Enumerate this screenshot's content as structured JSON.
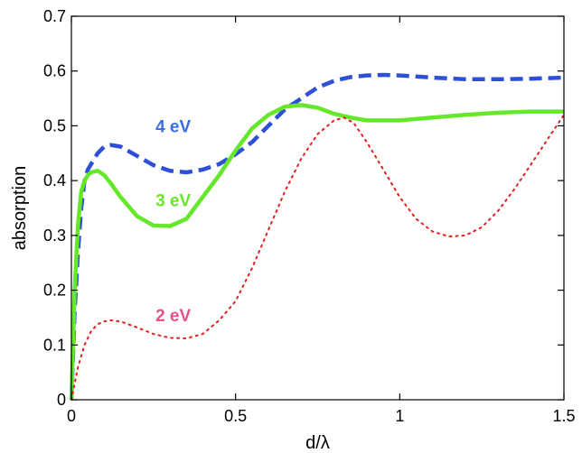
{
  "chart_data": {
    "type": "line",
    "title": "",
    "xlabel": "d/λ",
    "ylabel": "absorption",
    "xlim": [
      0,
      1.5
    ],
    "ylim": [
      0,
      0.7
    ],
    "grid": false,
    "legend": "none",
    "x_ticks": [
      0,
      0.5,
      1,
      1.5
    ],
    "x_tick_labels": [
      "0",
      "0.5",
      "1",
      "1.5"
    ],
    "y_ticks": [
      0,
      0.1,
      0.2,
      0.3,
      0.4,
      0.5,
      0.6,
      0.7
    ],
    "y_tick_labels": [
      "0",
      "0.1",
      "0.2",
      "0.3",
      "0.4",
      "0.5",
      "0.6",
      "0.7"
    ],
    "series": [
      {
        "name": "4 eV",
        "color": "#2e4fd6",
        "style": "dashed",
        "label_color": "#3a6fe0",
        "label_at": [
          0.31,
          0.5
        ],
        "x": [
          0,
          0.01,
          0.02,
          0.03,
          0.04,
          0.05,
          0.06,
          0.08,
          0.1,
          0.12,
          0.15,
          0.2,
          0.25,
          0.3,
          0.35,
          0.4,
          0.45,
          0.5,
          0.55,
          0.6,
          0.65,
          0.7,
          0.75,
          0.8,
          0.85,
          0.9,
          0.95,
          1.0,
          1.05,
          1.1,
          1.2,
          1.3,
          1.4,
          1.5
        ],
        "values": [
          0.0,
          0.16,
          0.27,
          0.35,
          0.4,
          0.42,
          0.43,
          0.45,
          0.462,
          0.465,
          0.462,
          0.445,
          0.428,
          0.418,
          0.415,
          0.42,
          0.43,
          0.448,
          0.47,
          0.5,
          0.53,
          0.55,
          0.57,
          0.582,
          0.589,
          0.592,
          0.593,
          0.592,
          0.59,
          0.588,
          0.585,
          0.585,
          0.586,
          0.588
        ]
      },
      {
        "name": "3 eV",
        "color": "#66e82a",
        "style": "solid",
        "label_color": "#66e82a",
        "label_at": [
          0.31,
          0.365
        ],
        "x": [
          0,
          0.01,
          0.02,
          0.03,
          0.04,
          0.05,
          0.06,
          0.08,
          0.1,
          0.12,
          0.15,
          0.2,
          0.25,
          0.3,
          0.35,
          0.4,
          0.45,
          0.5,
          0.55,
          0.6,
          0.65,
          0.7,
          0.75,
          0.8,
          0.85,
          0.9,
          0.95,
          1.0,
          1.1,
          1.2,
          1.3,
          1.4,
          1.5
        ],
        "values": [
          0.0,
          0.2,
          0.32,
          0.38,
          0.4,
          0.41,
          0.415,
          0.418,
          0.41,
          0.395,
          0.37,
          0.335,
          0.318,
          0.317,
          0.33,
          0.37,
          0.41,
          0.455,
          0.495,
          0.52,
          0.535,
          0.538,
          0.533,
          0.522,
          0.515,
          0.51,
          0.51,
          0.51,
          0.515,
          0.52,
          0.524,
          0.526,
          0.526
        ]
      },
      {
        "name": "2 eV",
        "color": "#e02020",
        "style": "dotted",
        "label_color": "#e8508c",
        "label_at": [
          0.31,
          0.155
        ],
        "x": [
          0,
          0.02,
          0.04,
          0.06,
          0.08,
          0.1,
          0.12,
          0.15,
          0.2,
          0.25,
          0.3,
          0.35,
          0.4,
          0.45,
          0.5,
          0.55,
          0.6,
          0.65,
          0.7,
          0.75,
          0.8,
          0.83,
          0.86,
          0.9,
          0.95,
          1.0,
          1.05,
          1.1,
          1.15,
          1.2,
          1.25,
          1.3,
          1.35,
          1.4,
          1.45,
          1.5
        ],
        "values": [
          0.0,
          0.06,
          0.1,
          0.125,
          0.138,
          0.143,
          0.145,
          0.143,
          0.132,
          0.12,
          0.113,
          0.112,
          0.12,
          0.145,
          0.18,
          0.24,
          0.31,
          0.38,
          0.44,
          0.485,
          0.51,
          0.515,
          0.505,
          0.47,
          0.42,
          0.37,
          0.33,
          0.307,
          0.298,
          0.3,
          0.315,
          0.345,
          0.385,
          0.43,
          0.475,
          0.52
        ]
      }
    ]
  }
}
